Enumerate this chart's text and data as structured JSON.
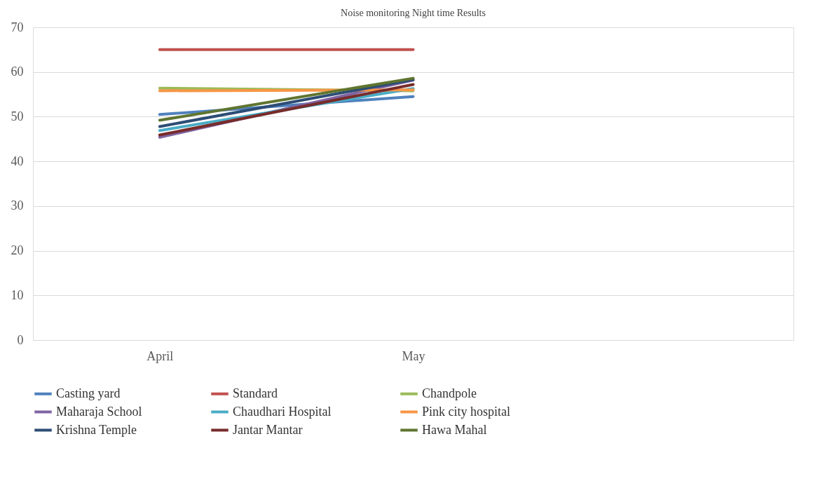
{
  "chart_data": {
    "type": "line",
    "title": "Noise monitoring  Night time Results",
    "categories": [
      "April",
      "May",
      null
    ],
    "ylim": [
      0,
      70
    ],
    "yticks": [
      0,
      10,
      20,
      30,
      40,
      50,
      60,
      70
    ],
    "grid": "y",
    "legend": "bottom",
    "marker": "none",
    "line_style": "solid",
    "series": [
      {
        "name": "Casting yard",
        "color": "#4f81bd",
        "values": [
          50.5,
          54.5,
          null
        ]
      },
      {
        "name": "Standard",
        "color": "#c0504d",
        "values": [
          65,
          65,
          null
        ]
      },
      {
        "name": "Chandpole",
        "color": "#9bbb59",
        "values": [
          56.4,
          55.8,
          null
        ]
      },
      {
        "name": "Maharaja School",
        "color": "#8064a2",
        "values": [
          45.4,
          58.2,
          null
        ]
      },
      {
        "name": "Chaudhari Hospital",
        "color": "#4bacc6",
        "values": [
          46.9,
          56.3,
          null
        ]
      },
      {
        "name": "Pink city hospital",
        "color": "#f79646",
        "values": [
          55.8,
          56.0,
          null
        ]
      },
      {
        "name": "Krishna Temple",
        "color": "#2c4d75",
        "values": [
          47.8,
          58.3,
          null
        ]
      },
      {
        "name": "Jantar Mantar",
        "color": "#772c2a",
        "values": [
          45.9,
          57.2,
          null
        ]
      },
      {
        "name": "Hawa Mahal",
        "color": "#5f7530",
        "values": [
          49.2,
          58.6,
          null
        ]
      }
    ]
  }
}
